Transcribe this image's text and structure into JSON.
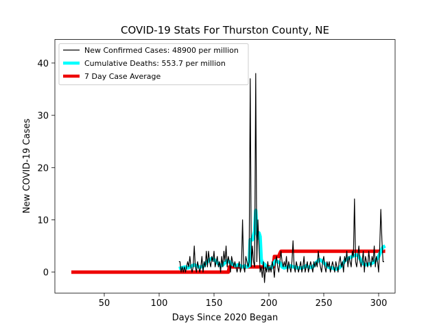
{
  "chart_data": {
    "type": "line",
    "title": "COVID-19 Stats For Thurston County, NE",
    "xlabel": "Days Since 2020 Began",
    "ylabel": "New COVID-19 Cases",
    "xlim": [
      5,
      315
    ],
    "ylim": [
      -4,
      44.5
    ],
    "xticks": [
      50,
      100,
      150,
      200,
      250,
      300
    ],
    "yticks": [
      0,
      10,
      20,
      30,
      40
    ],
    "grid": false,
    "legend_position": "top-left",
    "series": [
      {
        "name": "New Confirmed Cases: 48900 per million",
        "color": "#000000",
        "points": [
          [
            118,
            2
          ],
          [
            119,
            2
          ],
          [
            120,
            0
          ],
          [
            121,
            1
          ],
          [
            122,
            0
          ],
          [
            123,
            1
          ],
          [
            124,
            0
          ],
          [
            125,
            1
          ],
          [
            126,
            2
          ],
          [
            127,
            1
          ],
          [
            128,
            3
          ],
          [
            129,
            1
          ],
          [
            130,
            0
          ],
          [
            131,
            1
          ],
          [
            132,
            5
          ],
          [
            133,
            1
          ],
          [
            134,
            0
          ],
          [
            135,
            2
          ],
          [
            136,
            1
          ],
          [
            137,
            0
          ],
          [
            138,
            1
          ],
          [
            139,
            3
          ],
          [
            140,
            0
          ],
          [
            141,
            2
          ],
          [
            142,
            1
          ],
          [
            143,
            4
          ],
          [
            144,
            1
          ],
          [
            145,
            4
          ],
          [
            146,
            2
          ],
          [
            147,
            1
          ],
          [
            148,
            3
          ],
          [
            149,
            2
          ],
          [
            150,
            4
          ],
          [
            151,
            1
          ],
          [
            152,
            2
          ],
          [
            153,
            3
          ],
          [
            154,
            1
          ],
          [
            155,
            2
          ],
          [
            156,
            0
          ],
          [
            157,
            3
          ],
          [
            158,
            1
          ],
          [
            159,
            4
          ],
          [
            160,
            2
          ],
          [
            161,
            5
          ],
          [
            162,
            1
          ],
          [
            163,
            3
          ],
          [
            164,
            2
          ],
          [
            165,
            0
          ],
          [
            166,
            3
          ],
          [
            167,
            2
          ],
          [
            168,
            1
          ],
          [
            169,
            2
          ],
          [
            170,
            1
          ],
          [
            171,
            0
          ],
          [
            172,
            1
          ],
          [
            173,
            2
          ],
          [
            174,
            0
          ],
          [
            175,
            1
          ],
          [
            176,
            10
          ],
          [
            177,
            1
          ],
          [
            178,
            0
          ],
          [
            179,
            3
          ],
          [
            180,
            2
          ],
          [
            181,
            1
          ],
          [
            182,
            2
          ],
          [
            183,
            37
          ],
          [
            184,
            1
          ],
          [
            185,
            5
          ],
          [
            186,
            2
          ],
          [
            187,
            1
          ],
          [
            188,
            38
          ],
          [
            189,
            2
          ],
          [
            190,
            10
          ],
          [
            191,
            5
          ],
          [
            192,
            0
          ],
          [
            193,
            1
          ],
          [
            194,
            -1
          ],
          [
            195,
            2
          ],
          [
            196,
            -2
          ],
          [
            197,
            1
          ],
          [
            198,
            0
          ],
          [
            199,
            2
          ],
          [
            200,
            0
          ],
          [
            201,
            1
          ],
          [
            202,
            0
          ],
          [
            203,
            2
          ],
          [
            204,
            1
          ],
          [
            205,
            -1
          ],
          [
            206,
            2
          ],
          [
            207,
            3
          ],
          [
            208,
            1
          ],
          [
            209,
            0
          ],
          [
            210,
            2
          ],
          [
            211,
            4
          ],
          [
            212,
            2
          ],
          [
            213,
            1
          ],
          [
            214,
            2
          ],
          [
            215,
            1
          ],
          [
            216,
            3
          ],
          [
            217,
            0
          ],
          [
            218,
            2
          ],
          [
            219,
            1
          ],
          [
            220,
            0
          ],
          [
            221,
            2
          ],
          [
            222,
            6
          ],
          [
            223,
            1
          ],
          [
            224,
            0
          ],
          [
            225,
            2
          ],
          [
            226,
            1
          ],
          [
            227,
            0
          ],
          [
            228,
            1
          ],
          [
            229,
            2
          ],
          [
            230,
            0
          ],
          [
            231,
            1
          ],
          [
            232,
            3
          ],
          [
            233,
            0
          ],
          [
            234,
            1
          ],
          [
            235,
            2
          ],
          [
            236,
            0
          ],
          [
            237,
            1
          ],
          [
            238,
            2
          ],
          [
            239,
            1
          ],
          [
            240,
            0
          ],
          [
            241,
            2
          ],
          [
            242,
            1
          ],
          [
            243,
            2
          ],
          [
            244,
            1
          ],
          [
            245,
            4
          ],
          [
            246,
            2
          ],
          [
            247,
            1
          ],
          [
            248,
            0
          ],
          [
            249,
            2
          ],
          [
            250,
            3
          ],
          [
            251,
            1
          ],
          [
            252,
            0
          ],
          [
            253,
            2
          ],
          [
            254,
            1
          ],
          [
            255,
            2
          ],
          [
            256,
            0
          ],
          [
            257,
            1
          ],
          [
            258,
            2
          ],
          [
            259,
            1
          ],
          [
            260,
            0
          ],
          [
            261,
            2
          ],
          [
            262,
            1
          ],
          [
            263,
            0
          ],
          [
            264,
            2
          ],
          [
            265,
            3
          ],
          [
            266,
            1
          ],
          [
            267,
            2
          ],
          [
            268,
            0
          ],
          [
            269,
            3
          ],
          [
            270,
            2
          ],
          [
            271,
            4
          ],
          [
            272,
            1
          ],
          [
            273,
            3
          ],
          [
            274,
            2
          ],
          [
            275,
            1
          ],
          [
            276,
            4
          ],
          [
            277,
            3
          ],
          [
            278,
            14
          ],
          [
            279,
            2
          ],
          [
            280,
            1
          ],
          [
            281,
            3
          ],
          [
            282,
            5
          ],
          [
            283,
            2
          ],
          [
            284,
            1
          ],
          [
            285,
            2
          ],
          [
            286,
            4
          ],
          [
            287,
            0
          ],
          [
            288,
            3
          ],
          [
            289,
            2
          ],
          [
            290,
            1
          ],
          [
            291,
            4
          ],
          [
            292,
            2
          ],
          [
            293,
            1
          ],
          [
            294,
            3
          ],
          [
            295,
            2
          ],
          [
            296,
            5
          ],
          [
            297,
            1
          ],
          [
            298,
            3
          ],
          [
            299,
            2
          ],
          [
            300,
            0
          ],
          [
            301,
            5
          ],
          [
            302,
            12
          ],
          [
            303,
            6
          ],
          [
            304,
            2
          ],
          [
            305,
            2
          ]
        ]
      },
      {
        "name": "Cumulative Deaths: 553.7 per million",
        "color": "#00ffff",
        "points": [
          [
            118,
            0.7
          ],
          [
            120,
            0.8
          ],
          [
            122,
            0.9
          ],
          [
            124,
            1.0
          ],
          [
            126,
            0.8
          ],
          [
            128,
            1.0
          ],
          [
            130,
            1.2
          ],
          [
            132,
            1.4
          ],
          [
            134,
            1.2
          ],
          [
            136,
            1.0
          ],
          [
            138,
            1.0
          ],
          [
            140,
            1.1
          ],
          [
            142,
            1.6
          ],
          [
            144,
            2.0
          ],
          [
            146,
            2.4
          ],
          [
            148,
            2.6
          ],
          [
            150,
            2.4
          ],
          [
            152,
            2.0
          ],
          [
            154,
            1.6
          ],
          [
            156,
            1.2
          ],
          [
            158,
            1.4
          ],
          [
            160,
            1.8
          ],
          [
            162,
            2.2
          ],
          [
            164,
            2.0
          ],
          [
            166,
            1.6
          ],
          [
            168,
            1.4
          ],
          [
            170,
            1.2
          ],
          [
            172,
            1.4
          ],
          [
            174,
            1.2
          ],
          [
            176,
            1.0
          ],
          [
            178,
            1.2
          ],
          [
            180,
            1.0
          ],
          [
            182,
            1.2
          ],
          [
            183,
            6.2
          ],
          [
            185,
            6.2
          ],
          [
            187,
            7.8
          ],
          [
            188,
            11.8
          ],
          [
            189,
            8.0
          ],
          [
            190,
            6.5
          ],
          [
            191,
            7.5
          ],
          [
            192,
            6.8
          ],
          [
            193,
            2.5
          ],
          [
            194,
            1.8
          ],
          [
            196,
            1.5
          ],
          [
            198,
            0.8
          ],
          [
            200,
            0.8
          ],
          [
            202,
            0.8
          ],
          [
            204,
            1.5
          ],
          [
            206,
            2.2
          ],
          [
            208,
            2.0
          ],
          [
            210,
            1.8
          ],
          [
            212,
            1.0
          ],
          [
            214,
            0.8
          ],
          [
            216,
            1.0
          ],
          [
            218,
            1.0
          ],
          [
            220,
            1.2
          ],
          [
            222,
            1.0
          ],
          [
            224,
            1.0
          ],
          [
            226,
            0.8
          ],
          [
            228,
            0.8
          ],
          [
            230,
            0.8
          ],
          [
            232,
            1.0
          ],
          [
            234,
            1.2
          ],
          [
            236,
            1.0
          ],
          [
            238,
            0.9
          ],
          [
            240,
            1.0
          ],
          [
            242,
            1.5
          ],
          [
            244,
            2.0
          ],
          [
            246,
            2.4
          ],
          [
            248,
            2.2
          ],
          [
            250,
            1.8
          ],
          [
            252,
            1.4
          ],
          [
            254,
            1.0
          ],
          [
            256,
            0.8
          ],
          [
            258,
            0.8
          ],
          [
            260,
            0.6
          ],
          [
            262,
            0.6
          ],
          [
            264,
            0.8
          ],
          [
            266,
            1.2
          ],
          [
            268,
            1.8
          ],
          [
            270,
            2.4
          ],
          [
            272,
            2.6
          ],
          [
            274,
            2.8
          ],
          [
            276,
            3.0
          ],
          [
            278,
            3.2
          ],
          [
            280,
            3.3
          ],
          [
            282,
            3.0
          ],
          [
            284,
            2.2
          ],
          [
            286,
            1.6
          ],
          [
            288,
            1.4
          ],
          [
            290,
            1.5
          ],
          [
            292,
            1.6
          ],
          [
            294,
            1.7
          ],
          [
            296,
            2.0
          ],
          [
            298,
            2.4
          ],
          [
            300,
            3.0
          ],
          [
            302,
            4.0
          ],
          [
            304,
            4.8
          ],
          [
            306,
            5.0
          ]
        ]
      },
      {
        "name": "7 Day Case Average",
        "color": "#ee0000",
        "points": [
          [
            20,
            0
          ],
          [
            50,
            0
          ],
          [
            100,
            0
          ],
          [
            140,
            0
          ],
          [
            163,
            0
          ],
          [
            164,
            1
          ],
          [
            200,
            1
          ],
          [
            204,
            1
          ],
          [
            205,
            3
          ],
          [
            209,
            3
          ],
          [
            210,
            3.6
          ],
          [
            211,
            4
          ],
          [
            250,
            4
          ],
          [
            290,
            4
          ],
          [
            306,
            4
          ]
        ]
      }
    ]
  }
}
